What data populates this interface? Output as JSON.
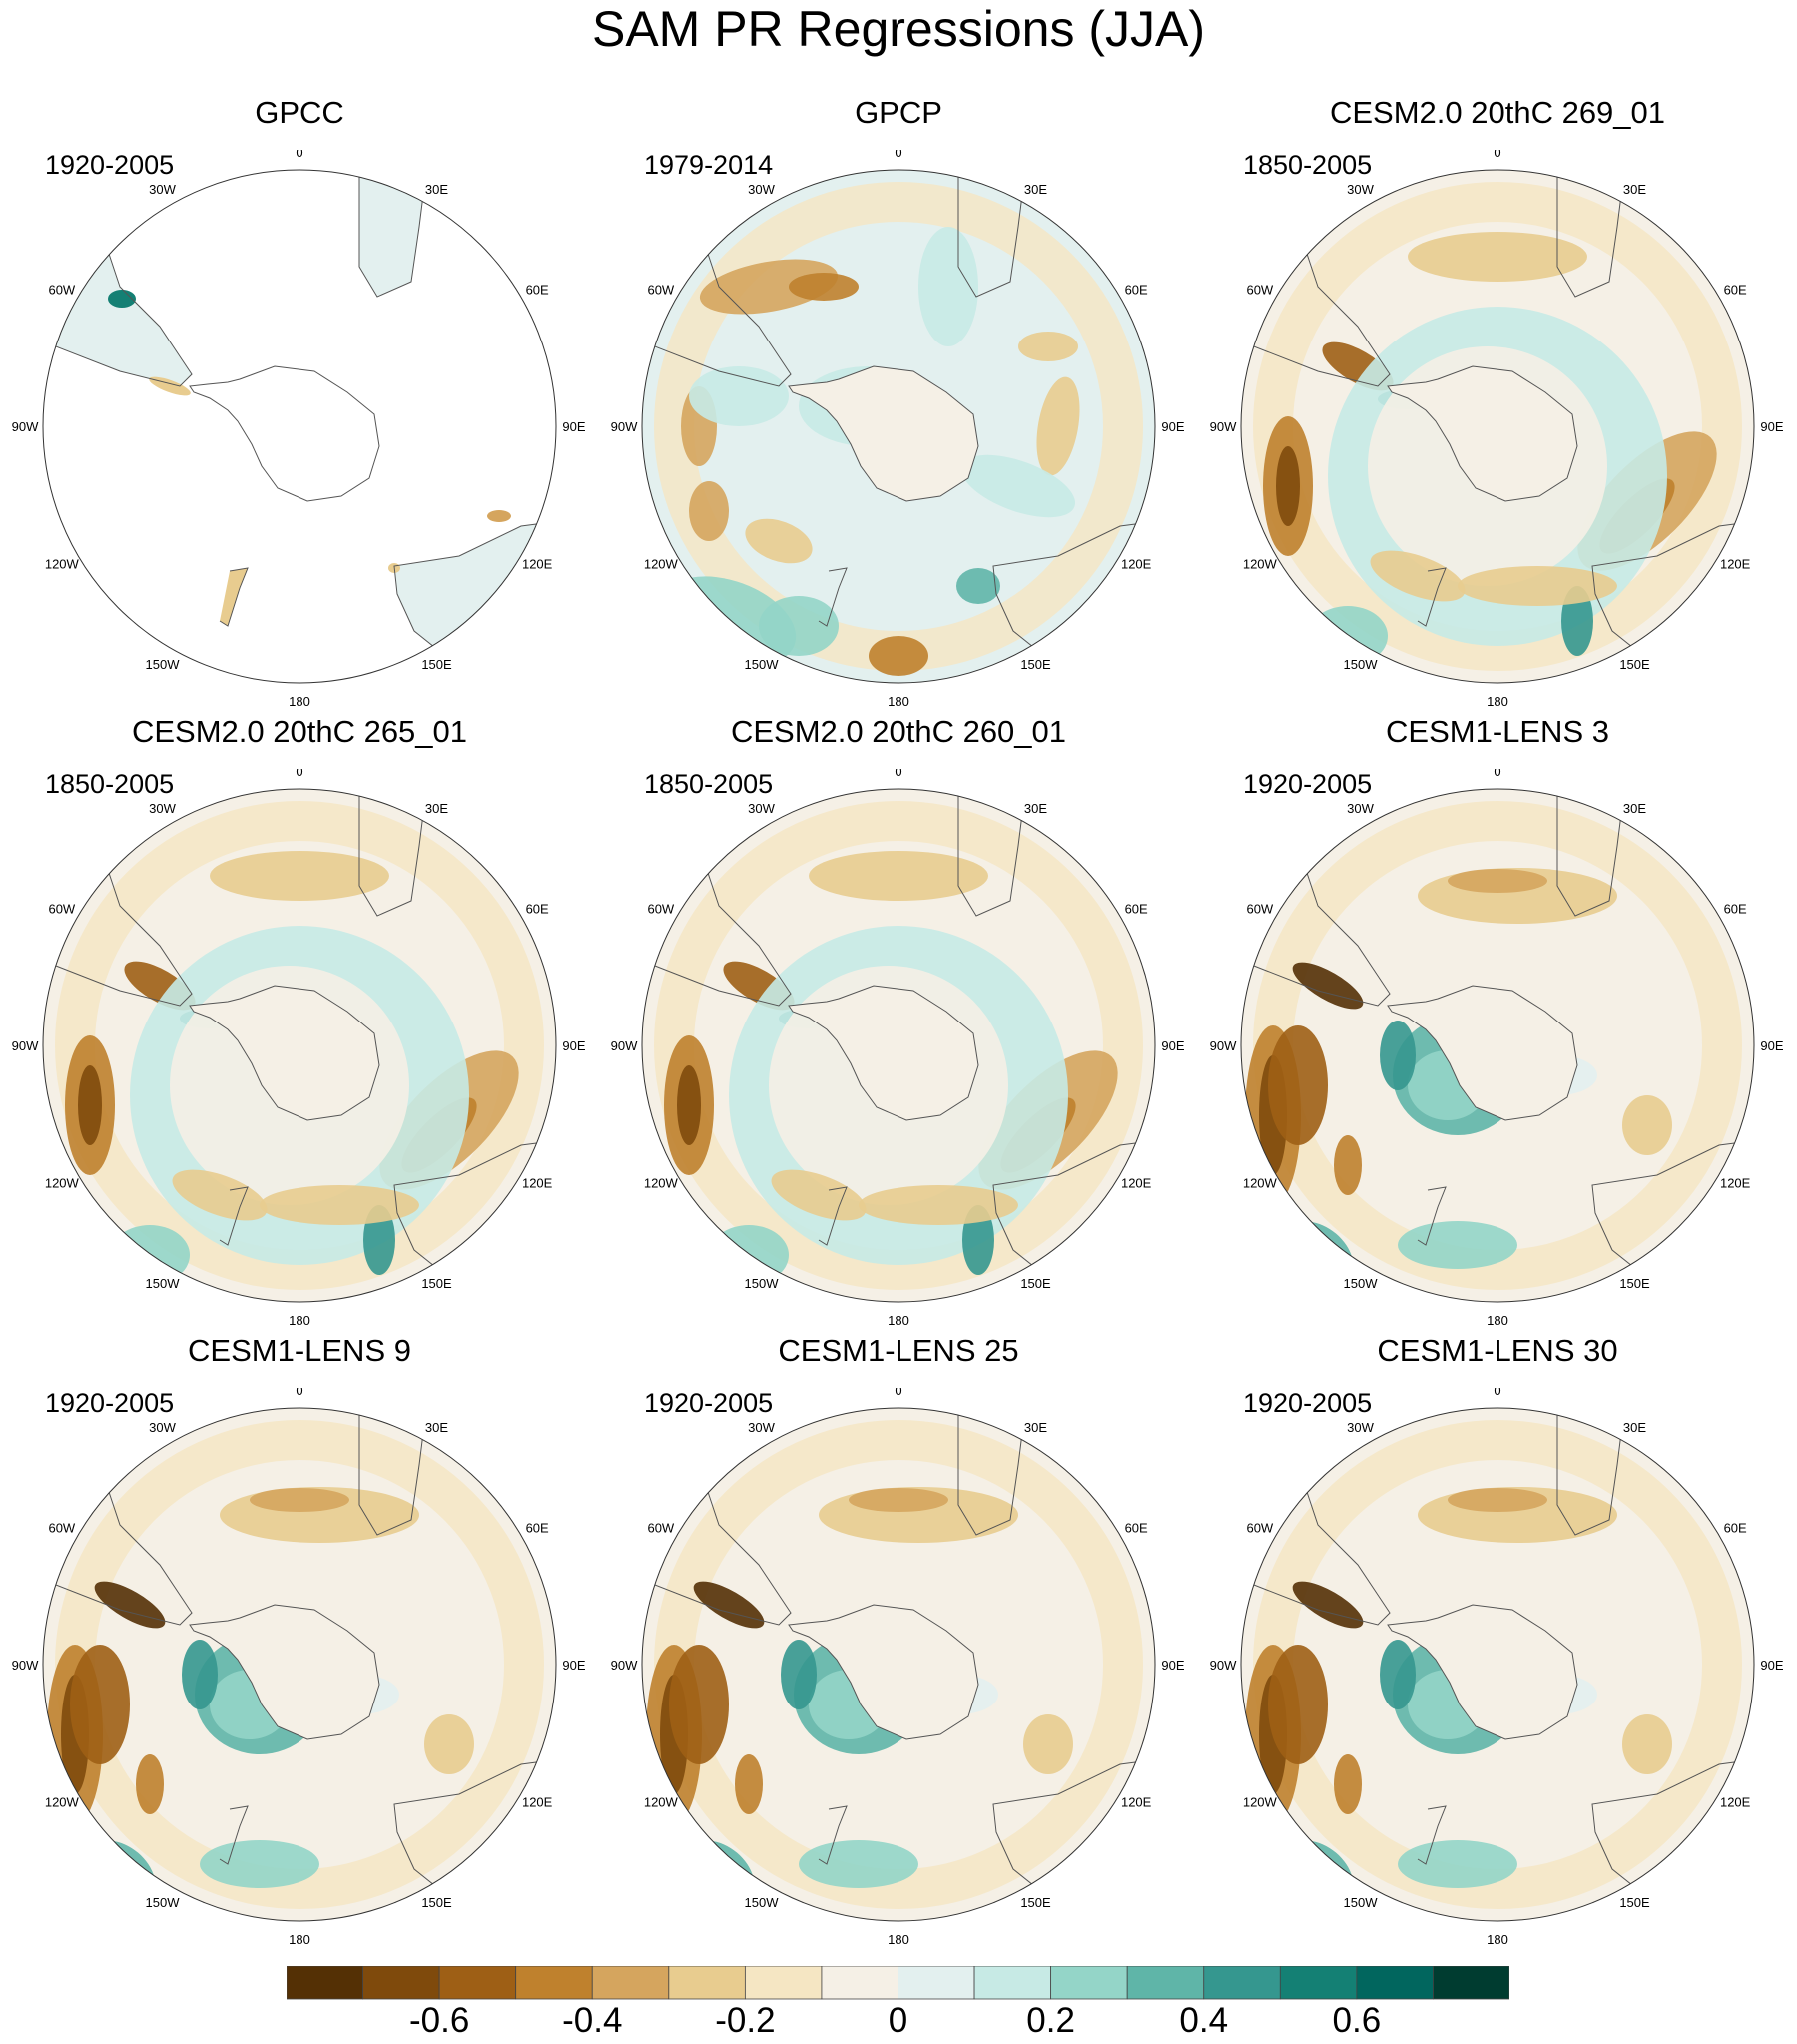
{
  "title": "SAM PR Regressions (JJA)",
  "panels": [
    {
      "title": "GPCC",
      "period": "1920-2005",
      "style": "land"
    },
    {
      "title": "GPCP",
      "period": "1979-2014",
      "style": "obs"
    },
    {
      "title": "CESM2.0 20thC 269_01",
      "period": "1850-2005",
      "style": "model"
    },
    {
      "title": "CESM2.0 20thC 265_01",
      "period": "1850-2005",
      "style": "model"
    },
    {
      "title": "CESM2.0 20thC 260_01",
      "period": "1850-2005",
      "style": "model"
    },
    {
      "title": "CESM1-LENS 3",
      "period": "1920-2005",
      "style": "lens"
    },
    {
      "title": "CESM1-LENS 9",
      "period": "1920-2005",
      "style": "lens"
    },
    {
      "title": "CESM1-LENS 25",
      "period": "1920-2005",
      "style": "lens"
    },
    {
      "title": "CESM1-LENS 30",
      "period": "1920-2005",
      "style": "lens"
    }
  ],
  "longitude_labels": [
    "0",
    "30E",
    "60E",
    "90E",
    "120E",
    "150E",
    "180",
    "150W",
    "120W",
    "90W",
    "60W",
    "30W"
  ],
  "colorbar": {
    "colors": [
      "#543005",
      "#7f4a0c",
      "#9e5f15",
      "#bf812d",
      "#d5a55e",
      "#e8cc8f",
      "#f5e6c3",
      "#f5f0e6",
      "#e3f0ef",
      "#c7eae5",
      "#94d5c8",
      "#5fb5a8",
      "#35978f",
      "#148074",
      "#01665e",
      "#003c30"
    ],
    "tick_labels": [
      "-0.6",
      "-0.4",
      "-0.2",
      "0",
      "0.2",
      "0.4",
      "0.6"
    ],
    "tick_values": [
      -0.6,
      -0.4,
      -0.2,
      0,
      0.2,
      0.4,
      0.6
    ],
    "min": -0.8,
    "max": 0.8
  }
}
